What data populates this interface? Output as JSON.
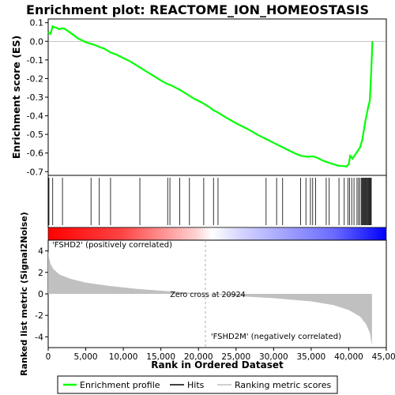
{
  "chart_data": {
    "type": "line",
    "title": "Enrichment plot: REACTOME_ION_HOMEOSTASIS",
    "es_panel": {
      "ylabel": "Enrichment score (ES)",
      "ylim": [
        -0.72,
        0.12
      ],
      "yticks": [
        0.1,
        0.0,
        -0.1,
        -0.2,
        -0.3,
        -0.4,
        -0.5,
        -0.6,
        -0.7
      ],
      "ytick_labels": [
        "0.1",
        "0.0",
        "-0.1",
        "-0.2",
        "-0.3",
        "-0.4",
        "-0.5",
        "-0.6",
        "-0.7"
      ],
      "color": "#00ff00",
      "series": [
        {
          "x": [
            0,
            300,
            600,
            900,
            1200,
            1500,
            1800,
            2100,
            2400,
            3000,
            4000,
            5000,
            5800,
            6200,
            6800,
            7500,
            8300,
            9000,
            10000,
            11000,
            12200,
            13000,
            14000,
            15000,
            15900,
            16300,
            17000,
            17500,
            18500,
            19500,
            20500,
            21500,
            22000,
            22500,
            23500,
            25000,
            26500,
            28000,
            29000,
            30000,
            31000,
            32000,
            33000,
            33700,
            34500,
            35200,
            35800,
            36500,
            37200,
            38000,
            38600,
            39200,
            39700,
            40000,
            40200,
            40500,
            41000,
            41500,
            41800,
            42000,
            42200,
            42400,
            42600,
            42800,
            42950,
            43050,
            43150
          ],
          "y": [
            0.05,
            0.04,
            0.08,
            0.075,
            0.07,
            0.065,
            0.07,
            0.068,
            0.062,
            0.045,
            0.015,
            -0.005,
            -0.015,
            -0.02,
            -0.03,
            -0.04,
            -0.06,
            -0.07,
            -0.09,
            -0.11,
            -0.14,
            -0.16,
            -0.185,
            -0.21,
            -0.23,
            -0.235,
            -0.25,
            -0.26,
            -0.285,
            -0.31,
            -0.33,
            -0.355,
            -0.37,
            -0.38,
            -0.405,
            -0.44,
            -0.47,
            -0.505,
            -0.525,
            -0.545,
            -0.565,
            -0.585,
            -0.605,
            -0.615,
            -0.62,
            -0.618,
            -0.625,
            -0.64,
            -0.65,
            -0.66,
            -0.668,
            -0.67,
            -0.672,
            -0.66,
            -0.615,
            -0.63,
            -0.6,
            -0.57,
            -0.53,
            -0.48,
            -0.43,
            -0.39,
            -0.35,
            -0.32,
            -0.2,
            -0.1,
            0.0
          ]
        }
      ]
    },
    "hits": [
      100,
      600,
      1900,
      5700,
      6800,
      8300,
      12200,
      15900,
      16200,
      17500,
      18800,
      20700,
      22000,
      22600,
      29000,
      30400,
      31200,
      33600,
      34300,
      34900,
      35200,
      35600,
      37000,
      37400,
      38700,
      39400,
      39900,
      40100,
      40400,
      40700,
      41100,
      41300,
      41500,
      41700,
      41800,
      41900,
      42000,
      42100,
      42200,
      42300,
      42400,
      42500,
      42600,
      42700,
      42800,
      42900,
      43000
    ],
    "rank_panel": {
      "ylabel": "Ranked list metric (Signal2Noise)",
      "ylim": [
        -5,
        5
      ],
      "yticks": [
        4,
        2,
        0,
        -2,
        -4
      ],
      "ytick_labels": [
        "4",
        "2",
        "0",
        "-2",
        "-4"
      ],
      "x": [
        0,
        100,
        300,
        700,
        1500,
        3000,
        5000,
        8000,
        12000,
        16000,
        20924,
        25000,
        30000,
        35000,
        38000,
        40000,
        41500,
        42300,
        42800,
        43100
      ],
      "y": [
        4.0,
        3.4,
        2.8,
        2.3,
        1.8,
        1.4,
        1.05,
        0.75,
        0.45,
        0.25,
        0.0,
        -0.2,
        -0.4,
        -0.7,
        -1.05,
        -1.5,
        -2.1,
        -2.8,
        -3.6,
        -4.8
      ],
      "fill_color": "#c0c0c0",
      "zero_cross_label": "Zero cross at 20924",
      "zero_cross": 20924,
      "pos_label": "'FSHD2' (positively correlated)",
      "neg_label": "'FSHD2M' (negatively correlated)"
    },
    "xlabel": "Rank in Ordered Dataset",
    "xlim": [
      0,
      45000
    ],
    "xticks": [
      0,
      5000,
      10000,
      15000,
      20000,
      25000,
      30000,
      35000,
      40000,
      45000
    ],
    "xtick_labels": [
      "0",
      "5,000",
      "10,000",
      "15,000",
      "20,000",
      "25,000",
      "30,000",
      "35,000",
      "40,000",
      "45,000"
    ],
    "n_genes": 43200,
    "legend": {
      "placement": "bottom",
      "entries": [
        {
          "label": "Enrichment profile",
          "color": "#00ff00"
        },
        {
          "label": "Hits",
          "color": "#000000"
        },
        {
          "label": "Ranking metric scores",
          "color": "#c0c0c0"
        }
      ]
    },
    "colors": {
      "pos_high": "#ff0000",
      "pos_low": "#ffd0d0",
      "neg_low": "#d8d8ff",
      "neg_high": "#0000ff"
    }
  }
}
